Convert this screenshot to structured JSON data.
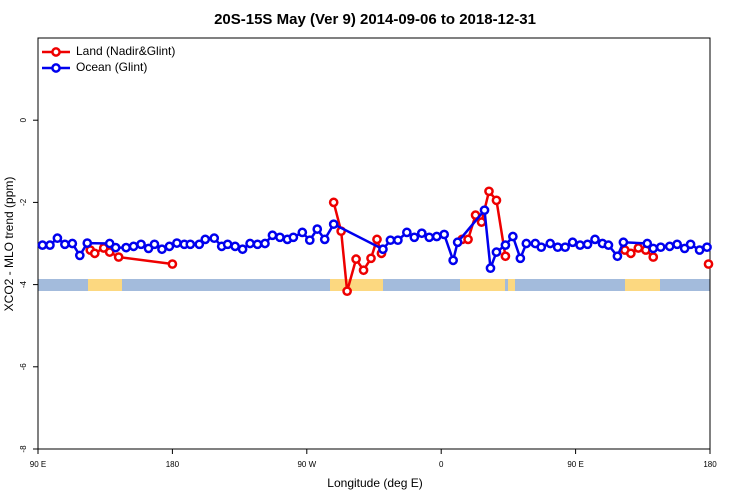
{
  "chart_data": {
    "type": "line",
    "title": "20S-15S May (Ver 9)   2014-09-06 to 2018-12-31",
    "xlabel": "Longitude (deg E)",
    "ylabel": "XCO2 - MLO trend (ppm)",
    "xlim": [
      90,
      540
    ],
    "xticks": [
      {
        "value": 90,
        "label": "90 E"
      },
      180,
      {
        "value": 270,
        "label": "90 W"
      },
      {
        "value": 360,
        "label": "0"
      },
      {
        "value": 450,
        "label": "90 E"
      },
      {
        "value": 540,
        "label": "180"
      }
    ],
    "ylim": [
      -8,
      2
    ],
    "yticks": [
      -8,
      -6,
      -4,
      -2,
      0
    ],
    "legend": "top-left",
    "series": [
      {
        "name": "Land (Nadir&Glint)",
        "color": "#ee0000",
        "x": [
          125,
          128,
          134,
          138,
          144,
          180,
          null,
          288,
          293,
          297,
          303,
          308,
          313,
          317,
          320,
          null,
          374,
          378,
          383,
          387,
          392,
          397,
          403,
          null,
          483,
          487,
          492,
          497,
          502,
          null,
          539
        ],
        "values": [
          -3.16,
          -3.24,
          -3.11,
          -3.21,
          -3.33,
          -3.5,
          null,
          -2.0,
          -2.7,
          -4.16,
          -3.38,
          -3.65,
          -3.36,
          -2.9,
          -3.24,
          null,
          -2.9,
          -2.9,
          -2.31,
          -2.48,
          -1.73,
          -1.95,
          -3.31,
          null,
          -3.16,
          -3.24,
          -3.11,
          -3.16,
          -3.33,
          null,
          -3.5
        ]
      },
      {
        "name": "Ocean (Glint)",
        "color": "#0000ee",
        "x": [
          93,
          98,
          103,
          108,
          113,
          118,
          123,
          138,
          142,
          149,
          154,
          159,
          164,
          168,
          173,
          178,
          183,
          188,
          192,
          198,
          202,
          208,
          213,
          217,
          222,
          227,
          232,
          237,
          242,
          247,
          252,
          257,
          261,
          267,
          272,
          277,
          282,
          288,
          321,
          326,
          331,
          337,
          342,
          347,
          352,
          357,
          362,
          368,
          371,
          389,
          393,
          397,
          403,
          408,
          413,
          417,
          423,
          427,
          433,
          438,
          443,
          448,
          453,
          458,
          463,
          468,
          472,
          478,
          482,
          498,
          502,
          507,
          513,
          518,
          523,
          527,
          533,
          538
        ],
        "values": [
          -3.04,
          -3.04,
          -2.87,
          -3.02,
          -3.0,
          -3.29,
          -2.99,
          -3.0,
          -3.1,
          -3.1,
          -3.07,
          -3.02,
          -3.12,
          -3.02,
          -3.14,
          -3.07,
          -2.99,
          -3.02,
          -3.02,
          -3.02,
          -2.9,
          -2.87,
          -3.07,
          -3.02,
          -3.07,
          -3.14,
          -3.0,
          -3.02,
          -3.0,
          -2.8,
          -2.85,
          -2.9,
          -2.85,
          -2.73,
          -2.92,
          -2.65,
          -2.9,
          -2.53,
          -3.14,
          -2.92,
          -2.92,
          -2.73,
          -2.85,
          -2.75,
          -2.85,
          -2.83,
          -2.78,
          -3.41,
          -2.97,
          -2.19,
          -3.6,
          -3.21,
          -3.04,
          -2.83,
          -3.36,
          -3.0,
          -3.0,
          -3.09,
          -3.0,
          -3.09,
          -3.09,
          -2.97,
          -3.04,
          -3.02,
          -2.9,
          -3.0,
          -3.04,
          -3.31,
          -2.97,
          -3.0,
          -3.12,
          -3.09,
          -3.07,
          -3.02,
          -3.12,
          -3.02,
          -3.16,
          -3.09
        ]
      }
    ]
  }
}
